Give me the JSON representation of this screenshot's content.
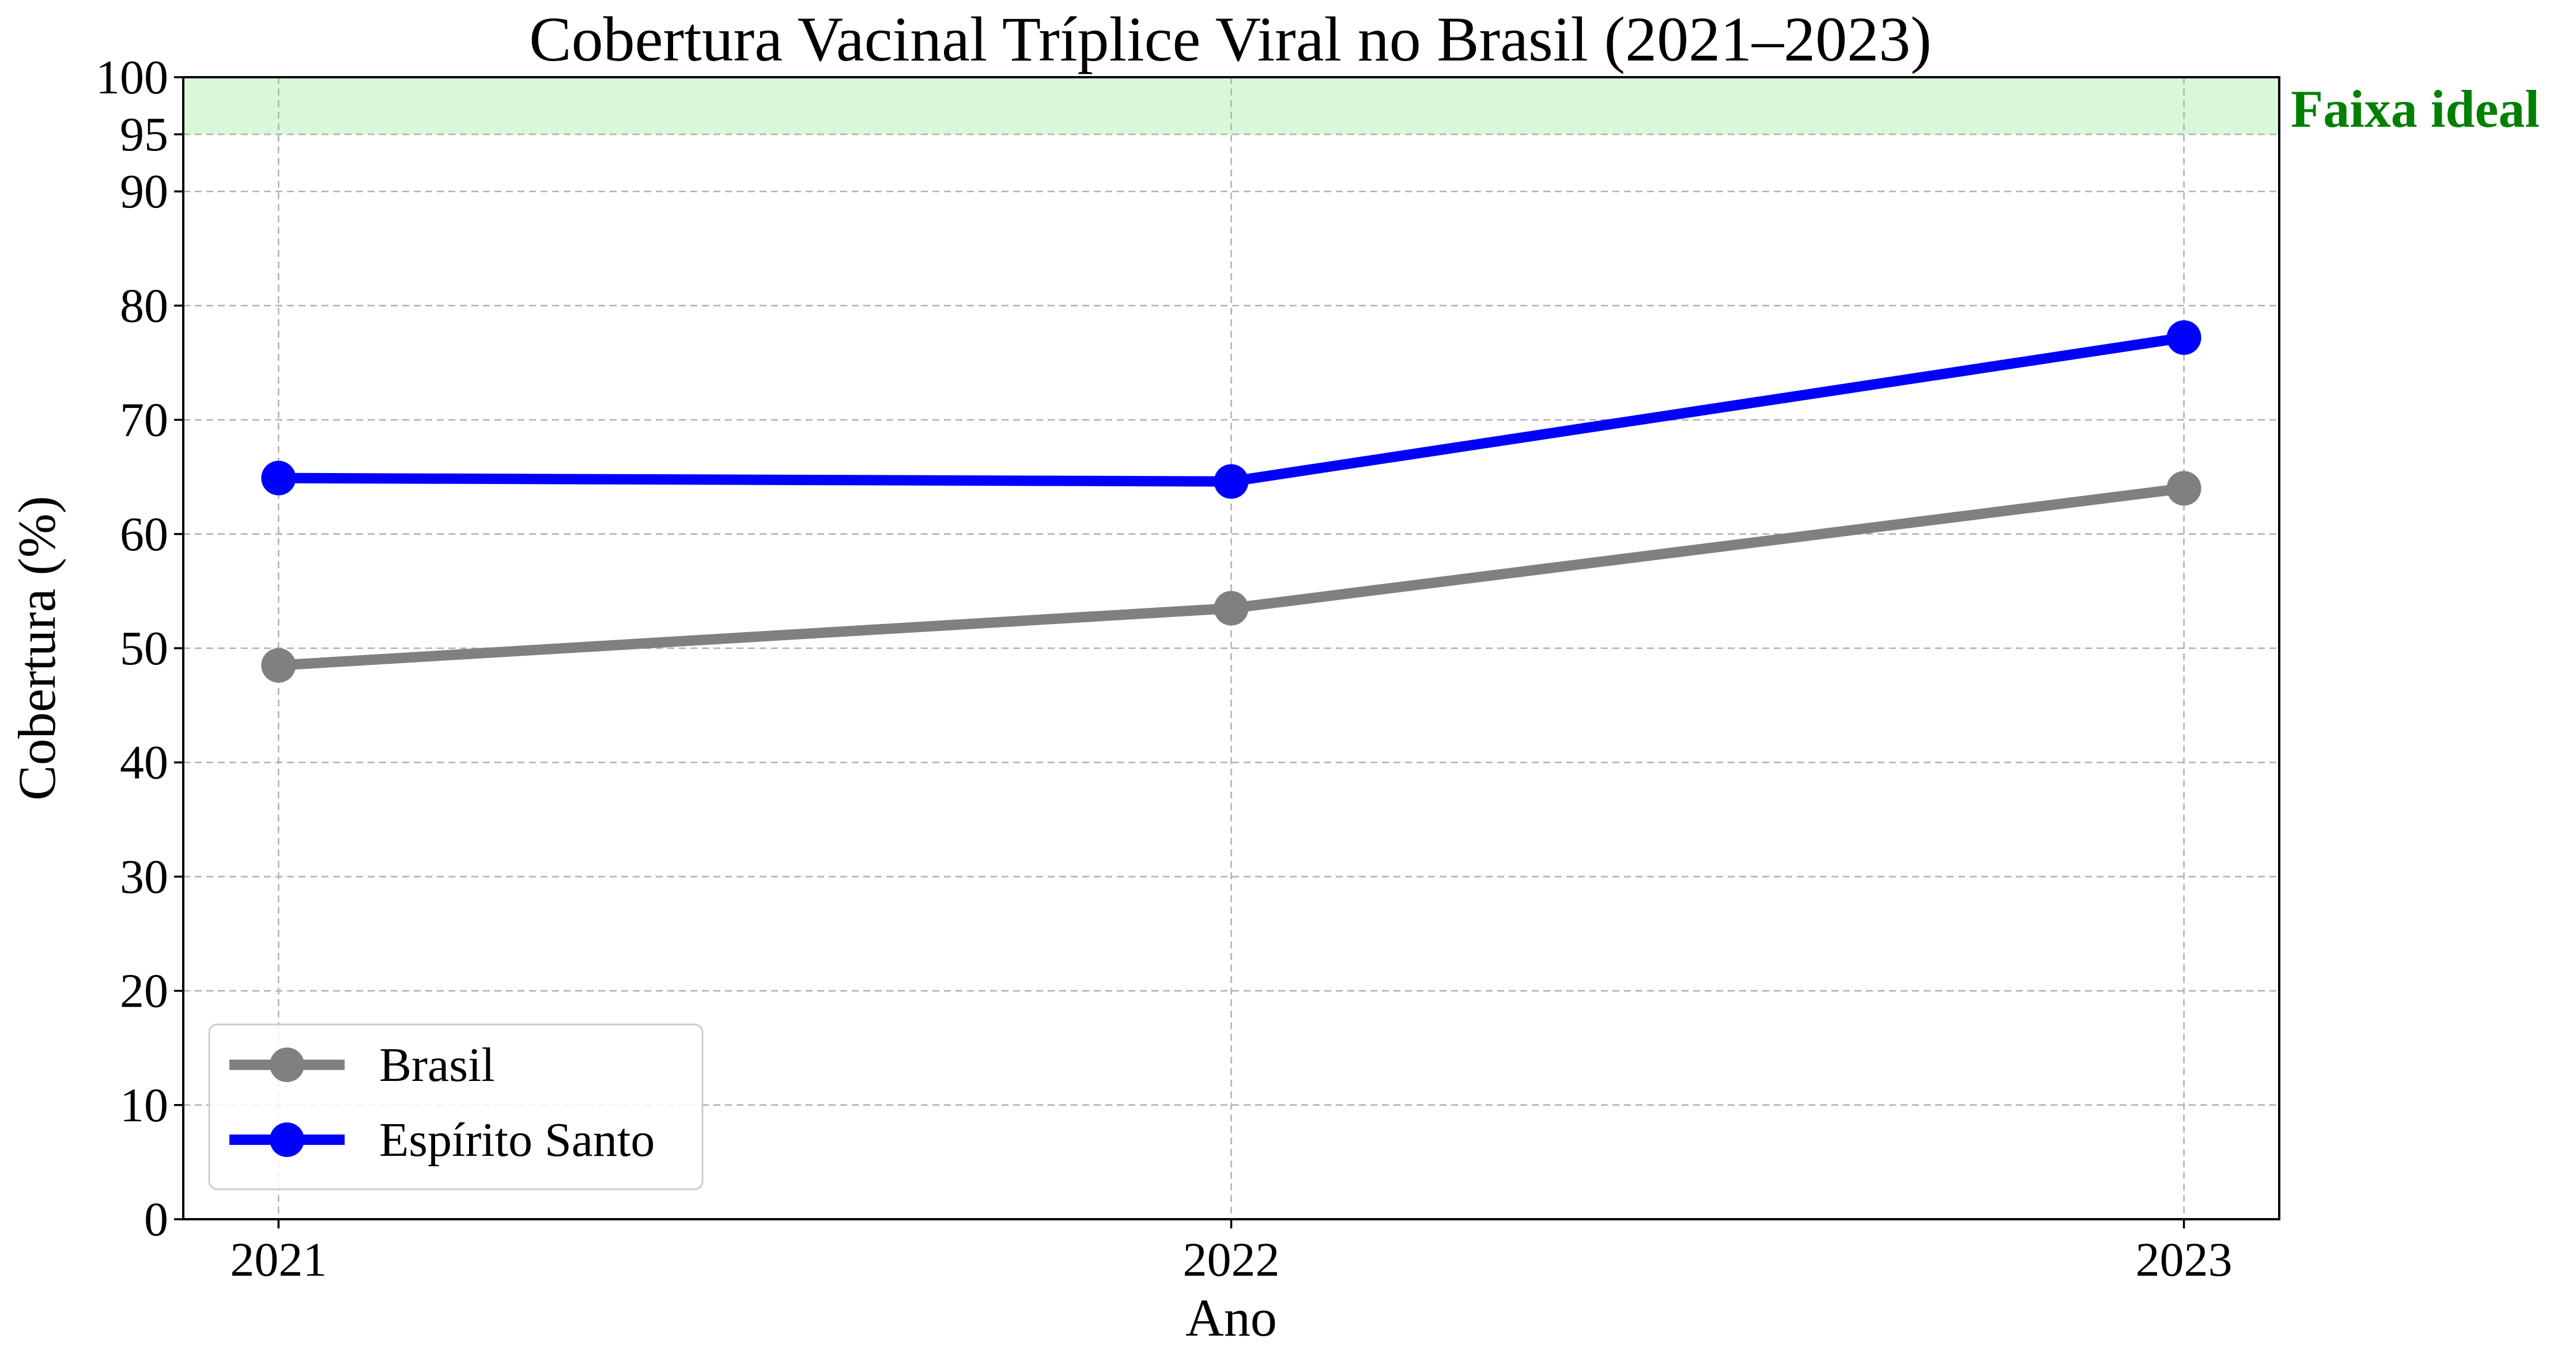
{
  "chart_data": {
    "type": "line",
    "title": "Cobertura Vacinal Tríplice Viral no Brasil (2021–2023)",
    "xlabel": "Ano",
    "ylabel": "Cobertura (%)",
    "x": [
      2021,
      2022,
      2023
    ],
    "x_tick_labels": [
      "2021",
      "2022",
      "2023"
    ],
    "xlim": [
      2020.9,
      2023.1
    ],
    "ylim": [
      0,
      100
    ],
    "y_ticks": [
      0,
      10,
      20,
      30,
      40,
      50,
      60,
      70,
      80,
      90,
      95,
      100
    ],
    "y_tick_labels": [
      "0",
      "10",
      "20",
      "30",
      "40",
      "50",
      "60",
      "70",
      "80",
      "90",
      "95",
      "100"
    ],
    "grid": true,
    "grid_style": "dashed",
    "legend_position": "bottom-left",
    "series": [
      {
        "name": "Brasil",
        "values": [
          48.5,
          53.5,
          64.0
        ],
        "color": "#808080",
        "marker": "circle"
      },
      {
        "name": "Espírito Santo",
        "values": [
          64.9,
          64.6,
          77.2
        ],
        "color": "#0000ff",
        "marker": "circle"
      }
    ],
    "shaded_band": {
      "from": 95,
      "to": 100,
      "color": "#d9f7d9",
      "label": "Faixa ideal",
      "label_color": "#008000"
    }
  }
}
